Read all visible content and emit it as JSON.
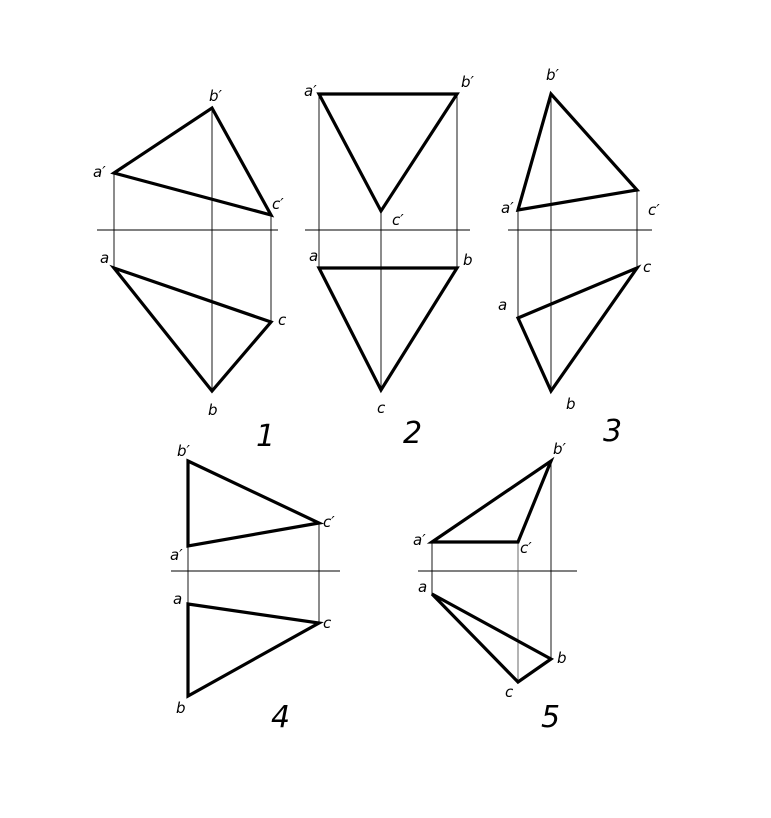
{
  "figures": [
    {
      "id": "1",
      "number": "1",
      "labels": {
        "a_prime": "a′",
        "b_prime": "b′",
        "c_prime": "c′",
        "a": "a",
        "b": "b",
        "c": "c"
      }
    },
    {
      "id": "2",
      "number": "2",
      "labels": {
        "a_prime": "a′",
        "b_prime": "b′",
        "c_prime": "c′",
        "a": "a",
        "b": "b",
        "c": "c"
      }
    },
    {
      "id": "3",
      "number": "3",
      "labels": {
        "a_prime": "a′",
        "b_prime": "b′",
        "c_prime": "c′",
        "a": "a",
        "b": "b",
        "c": "c"
      }
    },
    {
      "id": "4",
      "number": "4",
      "labels": {
        "a_prime": "a′",
        "b_prime": "b′",
        "c_prime": "c′",
        "a": "a",
        "b": "b",
        "c": "c"
      }
    },
    {
      "id": "5",
      "number": "5",
      "labels": {
        "a_prime": "a′",
        "b_prime": "b′",
        "c_prime": "c′",
        "a": "a",
        "b": "b",
        "c": "c"
      }
    }
  ]
}
